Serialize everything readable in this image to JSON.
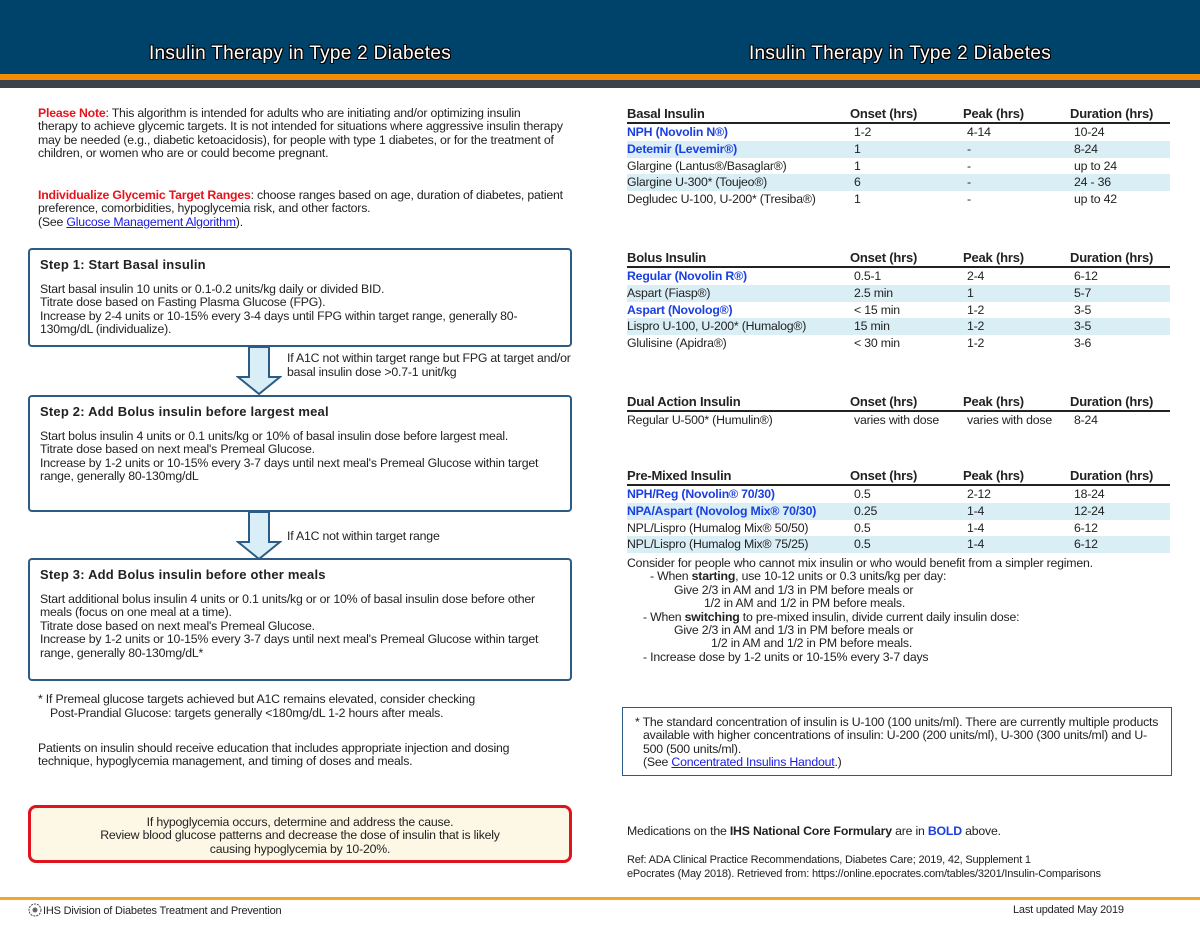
{
  "header": {
    "title_left": "Insulin Therapy in Type 2 Diabetes",
    "title_right": "Insulin Therapy in Type 2 Diabetes"
  },
  "left": {
    "note_label": "Please Note",
    "note_text": ": This algorithm is intended for adults who are initiating and/or optimizing insulin therapy to achieve glycemic targets. It is not intended for situations where aggressive insulin therapy may be needed (e.g., diabetic ketoacidosis), for people with type 1 diabetes, or for the treatment of children, or women who are or could become pregnant.",
    "indiv_label": "Individualize Glycemic Target Ranges",
    "indiv_text": ": choose ranges based on age, duration of diabetes, patient preference, comorbidities, hypoglycemia risk, and other factors.",
    "see_prefix": "(See ",
    "see_link": "Glucose Management Algorithm",
    "see_suffix": ").",
    "steps": [
      {
        "title": "Step 1: Start Basal insulin",
        "lines": [
          "Start basal insulin 10 units or 0.1-0.2 units/kg daily or divided BID.",
          "Titrate dose based on Fasting Plasma Glucose (FPG).",
          "Increase by 2-4 units or 10-15% every 3-4 days until FPG within target range, generally 80-130mg/dL (individualize)."
        ]
      },
      {
        "title": "Step 2: Add Bolus insulin before largest meal",
        "lines": [
          "Start bolus insulin 4 units or 0.1 units/kg or 10% of basal insulin dose before largest meal.",
          "Titrate dose based on next meal's Premeal Glucose.",
          "Increase by 1-2 units or 10-15% every 3-7 days until next meal's Premeal Glucose within target range, generally 80-130mg/dL"
        ]
      },
      {
        "title": "Step 3: Add Bolus insulin before other meals",
        "lines": [
          "Start additional bolus insulin 4 units or 0.1 units/kg or or 10% of basal insulin dose before other meals (focus on one meal at a time).",
          "Titrate dose based on next meal's Premeal Glucose.",
          "Increase by 1-2 units or 10-15% every 3-7 days until next meal's Premeal Glucose within target range, generally 80-130mg/dL*"
        ]
      }
    ],
    "arrow1_text": "If A1C not within target range but FPG at target and/or basal insulin dose >0.7-1 unit/kg",
    "arrow2_text": "If A1C not within target range",
    "footnote1": "* If Premeal glucose targets achieved but A1C remains elevated, consider checking",
    "footnote2": "Post-Prandial Glucose: targets generally <180mg/dL 1-2 hours after meals.",
    "education": "Patients on insulin should receive education that includes appropriate injection and dosing technique, hypoglycemia management, and timing of doses and meals.",
    "alert": [
      "If  hypoglycemia occurs, determine and address the cause.",
      "Review blood glucose patterns and decrease the dose of insulin that is likely",
      "causing hypoglycemia by 10-20%."
    ]
  },
  "tables": [
    {
      "headers": [
        "Basal Insulin",
        "Onset (hrs)",
        "Peak (hrs)",
        "Duration (hrs)"
      ],
      "rows": [
        {
          "bold": true,
          "cells": [
            "NPH (Novolin N®)",
            "1-2",
            "4-14",
            "10-24"
          ]
        },
        {
          "bold": true,
          "cells": [
            "Detemir (Levemir®)",
            "1",
            "-",
            "8-24"
          ]
        },
        {
          "bold": false,
          "cells": [
            "Glargine (Lantus®/Basaglar®)",
            "1",
            "-",
            "up to 24"
          ]
        },
        {
          "bold": false,
          "cells": [
            "Glargine U-300* (Toujeo®)",
            "6",
            "-",
            "24 - 36"
          ]
        },
        {
          "bold": false,
          "cells": [
            "Degludec U-100, U-200* (Tresiba®)",
            "1",
            "-",
            "up to 42"
          ]
        }
      ]
    },
    {
      "headers": [
        "Bolus Insulin",
        "Onset (hrs)",
        "Peak (hrs)",
        "Duration (hrs)"
      ],
      "rows": [
        {
          "bold": true,
          "cells": [
            "Regular (Novolin R®)",
            "0.5-1",
            "2-4",
            "6-12"
          ]
        },
        {
          "bold": false,
          "cells": [
            "Aspart (Fiasp®)",
            "2.5 min",
            "1",
            "5-7"
          ]
        },
        {
          "bold": true,
          "cells": [
            "Aspart (Novolog®)",
            "< 15 min",
            "1-2",
            "3-5"
          ]
        },
        {
          "bold": false,
          "cells": [
            "Lispro U-100, U-200* (Humalog®)",
            "15 min",
            "1-2",
            "3-5"
          ]
        },
        {
          "bold": false,
          "cells": [
            "Glulisine (Apidra®)",
            "< 30 min",
            "1-2",
            "3-6"
          ]
        }
      ]
    },
    {
      "headers": [
        "Dual Action Insulin",
        "Onset (hrs)",
        "Peak (hrs)",
        "Duration (hrs)"
      ],
      "rows": [
        {
          "bold": false,
          "cells": [
            "Regular U-500* (Humulin®)",
            "varies with dose",
            "varies with dose",
            "8-24"
          ]
        }
      ]
    },
    {
      "headers": [
        "Pre-Mixed Insulin",
        "Onset (hrs)",
        "Peak (hrs)",
        "Duration (hrs)"
      ],
      "rows": [
        {
          "bold": true,
          "cells": [
            "NPH/Reg (Novolin® 70/30)",
            "0.5",
            "2-12",
            "18-24"
          ]
        },
        {
          "bold": true,
          "cells": [
            "NPA/Aspart (Novolog Mix® 70/30)",
            "0.25",
            "1-4",
            "12-24"
          ]
        },
        {
          "bold": false,
          "cells": [
            "NPL/Lispro (Humalog Mix® 50/50)",
            "0.5",
            "1-4",
            "6-12"
          ]
        },
        {
          "bold": false,
          "cells": [
            "NPL/Lispro (Humalog Mix® 75/25)",
            "0.5",
            "1-4",
            "6-12"
          ]
        }
      ]
    }
  ],
  "premix_notes": {
    "intro": "Consider for people who cannot mix insulin or who would benefit from a simpler regimen.",
    "start_a": "- When ",
    "start_b": "starting",
    "start_c": ", use 10-12 units or 0.3 units/kg per day:",
    "start_l1": "Give 2/3 in AM and 1/3 in PM before meals or",
    "start_l2": "1/2 in AM and 1/2 in PM before meals.",
    "switch_a": "- When ",
    "switch_b": "switching",
    "switch_c": " to pre-mixed insulin, divide current daily insulin dose:",
    "switch_l1": "Give 2/3 in AM and 1/3 in PM before meals or",
    "switch_l2": "1/2 in AM and 1/2 in PM before meals.",
    "increase": "- Increase dose by 1-2 units or 10-15% every 3-7 days"
  },
  "concentration": {
    "text": "* The standard concentration of insulin is U-100 (100 units/ml).  There are currently multiple products available with higher concentrations of insulin: U-200 (200 units/ml), U-300 (300 units/ml) and U-500 (500 units/ml).",
    "see_prefix": "(See ",
    "link": "Concentrated Insulins Handout",
    "see_suffix": ".)"
  },
  "formulary": {
    "a": "Medications on the ",
    "b": "IHS National Core Formulary",
    "c": " are in ",
    "d": "BOLD",
    "e": " above."
  },
  "refs": [
    "Ref: ADA Clinical Practice Recommendations, Diabetes Care; 2019, 42, Supplement 1",
    "ePocrates (May 2018). Retrieved from: https://online.epocrates.com/tables/3201/Insulin-Comparisons"
  ],
  "footer": {
    "org": "IHS Division of Diabetes Treatment and Prevention",
    "updated": "Last updated May 2019"
  },
  "colors": {
    "header": "#00436a",
    "accent": "#f58a07",
    "formulary_blue": "#1a3fe0",
    "alert_red": "#e0141e"
  }
}
